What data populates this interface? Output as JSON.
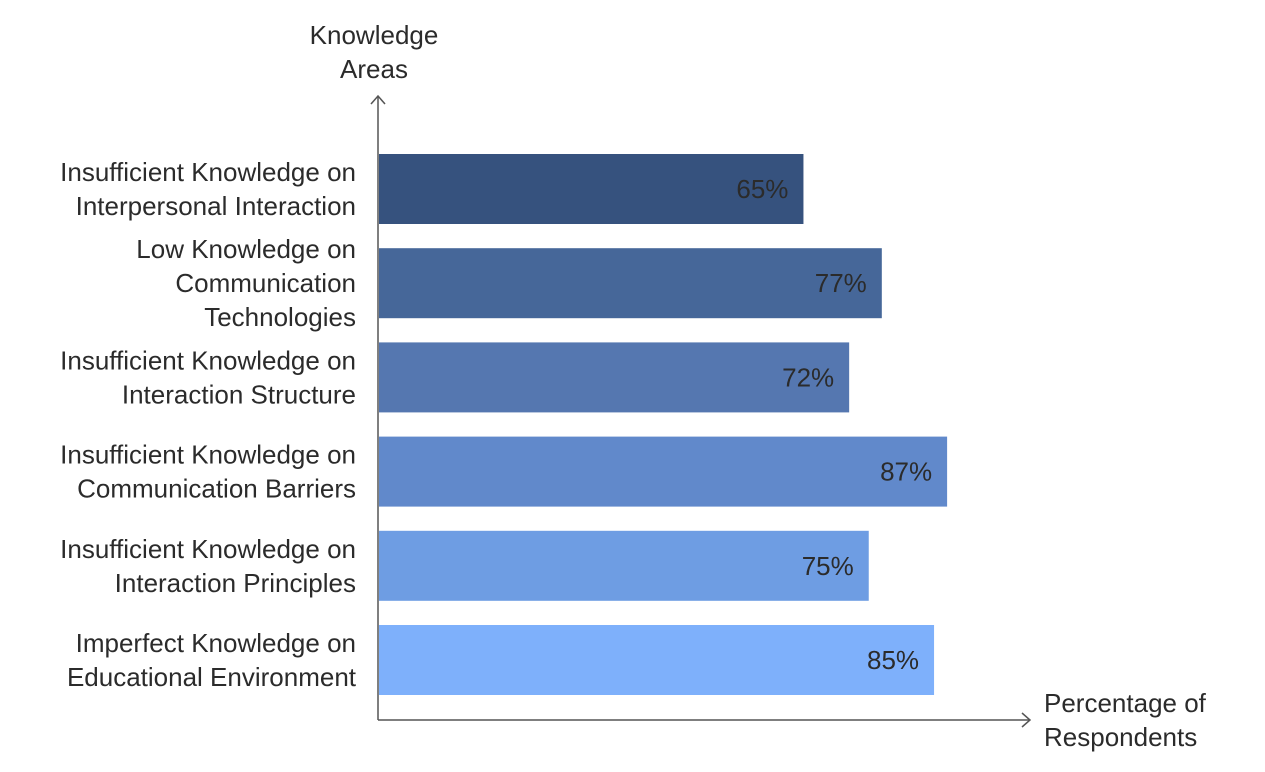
{
  "chart_data": {
    "type": "bar",
    "orientation": "horizontal",
    "categories": [
      [
        "Insufficient Knowledge on",
        "Interpersonal Interaction"
      ],
      [
        "Low Knowledge on",
        "Communication",
        "Technologies"
      ],
      [
        "Insufficient Knowledge on",
        "Interaction Structure"
      ],
      [
        "Insufficient Knowledge on",
        "Communication Barriers"
      ],
      [
        "Insufficient Knowledge on",
        "Interaction Principles"
      ],
      [
        "Imperfect Knowledge on",
        "Educational Environment"
      ]
    ],
    "values": [
      65,
      77,
      72,
      87,
      75,
      85
    ],
    "data_labels": [
      "65%",
      "77%",
      "72%",
      "87%",
      "75%",
      "85%"
    ],
    "colors": [
      "#36527e",
      "#466799",
      "#5577b0",
      "#6189cb",
      "#6e9de3",
      "#7eb0fb"
    ],
    "ylabel": [
      "Knowledge",
      "Areas"
    ],
    "xlabel": [
      "Percentage of",
      "Respondents"
    ],
    "xlim": [
      0,
      100
    ],
    "grid": false,
    "legend": "none"
  }
}
